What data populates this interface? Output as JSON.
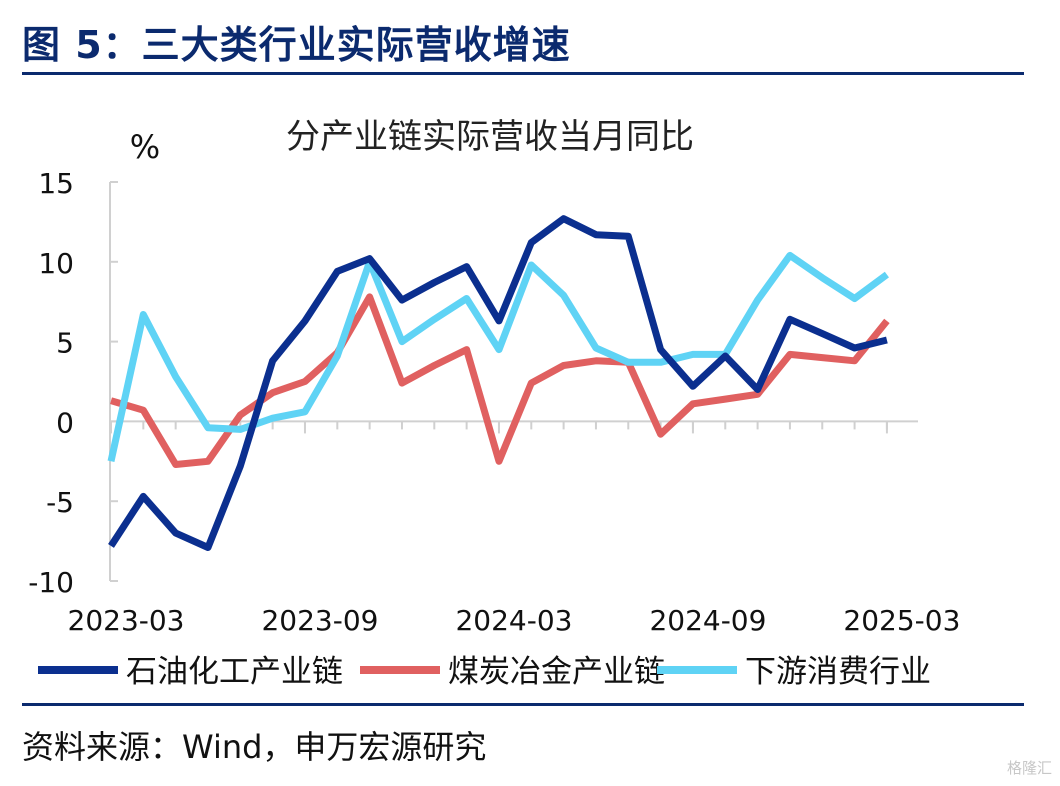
{
  "figure": {
    "title": "图 5：三大类行业实际营收增速",
    "source": "资料来源：Wind，申万宏源研究",
    "watermark": "格隆汇"
  },
  "chart_data": {
    "type": "line",
    "title": "分产业链实际营收当月同比",
    "ylabel": "%",
    "ylim": [
      -10,
      15
    ],
    "yticks": [
      15,
      10,
      5,
      0,
      -5,
      -10
    ],
    "x": [
      "2023-03",
      "2023-04",
      "2023-05",
      "2023-06",
      "2023-07",
      "2023-08",
      "2023-09",
      "2023-10",
      "2023-11",
      "2023-12",
      "2024-01",
      "2024-02",
      "2024-03",
      "2024-04",
      "2024-05",
      "2024-06",
      "2024-07",
      "2024-08",
      "2024-09",
      "2024-10",
      "2024-11",
      "2024-12",
      "2025-01",
      "2025-02",
      "2025-03"
    ],
    "xtick_labels": [
      "2023-03",
      "2023-09",
      "2024-03",
      "2024-09",
      "2025-03"
    ],
    "legend_position": "bottom",
    "grid": false,
    "series": [
      {
        "name": "石油化工产业链",
        "color": "#0b2f8f",
        "values": [
          -7.8,
          -4.7,
          -7.0,
          -7.9,
          -2.8,
          3.8,
          6.3,
          9.4,
          10.2,
          7.6,
          8.7,
          9.7,
          6.3,
          11.2,
          12.7,
          11.7,
          11.6,
          4.5,
          2.2,
          4.1,
          2.0,
          6.4,
          5.5,
          4.6,
          5.1
        ]
      },
      {
        "name": "煤炭冶金产业链",
        "color": "#e06060",
        "values": [
          1.3,
          0.7,
          -2.7,
          -2.5,
          0.4,
          1.8,
          2.5,
          4.3,
          7.8,
          2.4,
          3.5,
          4.5,
          -2.5,
          2.4,
          3.5,
          3.8,
          3.7,
          -0.8,
          1.1,
          1.4,
          1.7,
          4.2,
          4.0,
          3.8,
          6.3
        ]
      },
      {
        "name": "下游消费行业",
        "color": "#5fd3f5",
        "values": [
          -2.5,
          6.7,
          2.8,
          -0.4,
          -0.5,
          0.2,
          0.6,
          4.1,
          10.0,
          5.0,
          6.4,
          7.7,
          4.5,
          9.8,
          7.9,
          4.6,
          3.7,
          3.7,
          4.2,
          4.2,
          7.6,
          10.4,
          9.0,
          7.7,
          9.2
        ]
      }
    ]
  }
}
